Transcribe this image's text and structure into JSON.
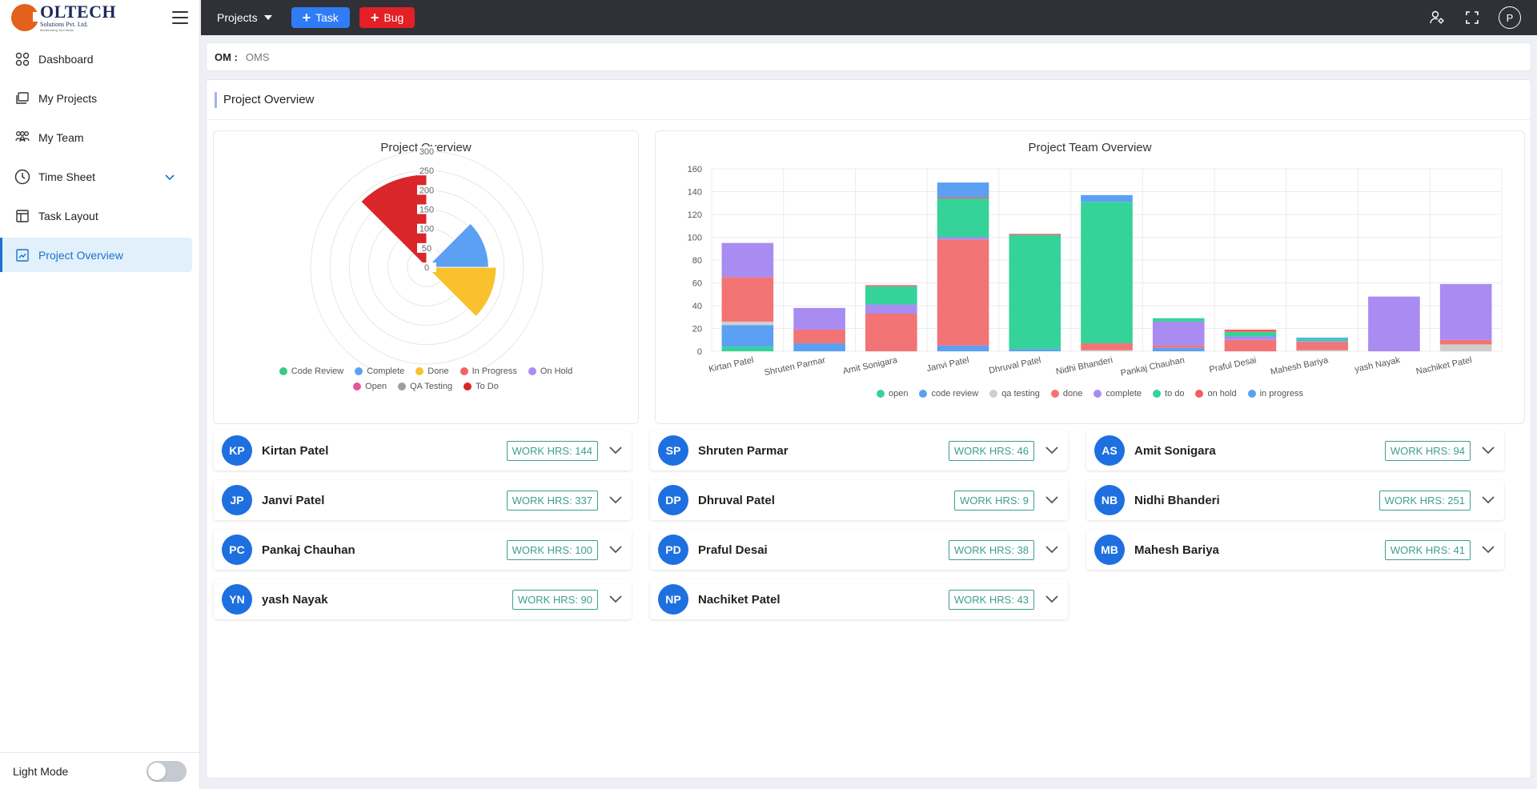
{
  "brand": {
    "name": "OLTECH",
    "subtitle": "Solutions Pvt. Ltd.",
    "tagline": "Modernizing Your Ideas"
  },
  "sidebar": {
    "items": [
      {
        "label": "Dashboard",
        "icon": "grid-icon"
      },
      {
        "label": "My Projects",
        "icon": "folders-icon"
      },
      {
        "label": "My Team",
        "icon": "team-icon"
      },
      {
        "label": "Time Sheet",
        "icon": "clock-icon"
      },
      {
        "label": "Task Layout",
        "icon": "layout-icon"
      },
      {
        "label": "Project Overview",
        "icon": "overview-icon",
        "active": true
      }
    ],
    "light_mode_label": "Light Mode"
  },
  "topbar": {
    "projects_label": "Projects",
    "task_label": "Task",
    "bug_label": "Bug",
    "user_initial": "P"
  },
  "crumb": {
    "key": "OM :",
    "value": "OMS"
  },
  "panel": {
    "title": "Project Overview"
  },
  "colors": {
    "open": "#35d39a",
    "code_review": "#5ba0f2",
    "qa_testing": "#cfcfcf",
    "done": "#f27474",
    "complete": "#a88cf2",
    "to_do": "#35d39a",
    "on_hold": "#f25c5c",
    "in_progress": "#5ba0f2"
  },
  "chart_data": [
    {
      "type": "polarArea",
      "title": "Project Overview",
      "categories": [
        "Code Review",
        "Complete",
        "Done",
        "In Progress",
        "On Hold",
        "Open",
        "QA Testing",
        "To Do"
      ],
      "values": [
        12,
        160,
        180,
        0,
        0,
        3,
        0,
        240
      ],
      "colors": [
        "#35c98a",
        "#5ba0f2",
        "#f8c12d",
        "#f06464",
        "#a88cf2",
        "#e8559c",
        "#9aa0a6",
        "#d9262a"
      ],
      "r_ticks": [
        "0",
        "50",
        "100",
        "150",
        "200",
        "250",
        "300"
      ],
      "r_max": 300,
      "legend": "bottom"
    },
    {
      "type": "stacked-bar",
      "title": "Project Team Overview",
      "categories": [
        "Kirtan Patel",
        "Shruten Parmar",
        "Amit Sonigara",
        "Janvi Patel",
        "Dhruval Patel",
        "Nidhi  Bhanderi",
        "Pankaj Chauhan",
        "Praful Desai",
        "Mahesh Bariya",
        "yash Nayak",
        "Nachiket Patel"
      ],
      "ylim": [
        0,
        160
      ],
      "y_ticks": [
        "0",
        "20",
        "40",
        "60",
        "80",
        "100",
        "120",
        "140",
        "160"
      ],
      "legend": "bottom",
      "series": [
        {
          "name": "open",
          "color": "#35d39a",
          "values": [
            4,
            0,
            0,
            0,
            0,
            0,
            0,
            0,
            0,
            0,
            0
          ]
        },
        {
          "name": "code review",
          "color": "#5ba0f2",
          "values": [
            19,
            7,
            0,
            5,
            2,
            0,
            3,
            0,
            0,
            0,
            0
          ]
        },
        {
          "name": "qa testing",
          "color": "#cfcfcf",
          "values": [
            3,
            0,
            0,
            0,
            0,
            1,
            0,
            0,
            1,
            0,
            6
          ]
        },
        {
          "name": "done",
          "color": "#f27474",
          "values": [
            39,
            12,
            33,
            93,
            0,
            6,
            2,
            10,
            7,
            0,
            4
          ]
        },
        {
          "name": "complete",
          "color": "#a88cf2",
          "values": [
            30,
            19,
            8,
            2,
            0,
            0,
            21,
            3,
            1,
            48,
            49
          ]
        },
        {
          "name": "to do",
          "color": "#35d39a",
          "values": [
            0,
            0,
            16,
            34,
            100,
            124,
            3,
            4,
            2,
            0,
            0
          ]
        },
        {
          "name": "on hold",
          "color": "#f25c5c",
          "values": [
            0,
            0,
            1,
            1,
            1,
            0,
            0,
            2,
            0,
            0,
            0
          ]
        },
        {
          "name": "in progress",
          "color": "#5ba0f2",
          "values": [
            0,
            0,
            0,
            13,
            0,
            6,
            0,
            0,
            1,
            0,
            0
          ]
        }
      ]
    }
  ],
  "members": [
    {
      "initials": "KP",
      "name": "Kirtan Patel",
      "hours": "WORK HRS: 144"
    },
    {
      "initials": "SP",
      "name": "Shruten Parmar",
      "hours": "WORK HRS: 46"
    },
    {
      "initials": "AS",
      "name": "Amit Sonigara",
      "hours": "WORK HRS: 94"
    },
    {
      "initials": "JP",
      "name": "Janvi Patel",
      "hours": "WORK HRS: 337"
    },
    {
      "initials": "DP",
      "name": "Dhruval Patel",
      "hours": "WORK HRS: 9"
    },
    {
      "initials": "NB",
      "name": "Nidhi Bhanderi",
      "hours": "WORK HRS: 251"
    },
    {
      "initials": "PC",
      "name": "Pankaj Chauhan",
      "hours": "WORK HRS: 100"
    },
    {
      "initials": "PD",
      "name": "Praful Desai",
      "hours": "WORK HRS: 38"
    },
    {
      "initials": "MB",
      "name": "Mahesh Bariya",
      "hours": "WORK HRS: 41"
    },
    {
      "initials": "YN",
      "name": "yash Nayak",
      "hours": "WORK HRS: 90"
    },
    {
      "initials": "NP",
      "name": "Nachiket Patel",
      "hours": "WORK HRS: 43"
    }
  ]
}
